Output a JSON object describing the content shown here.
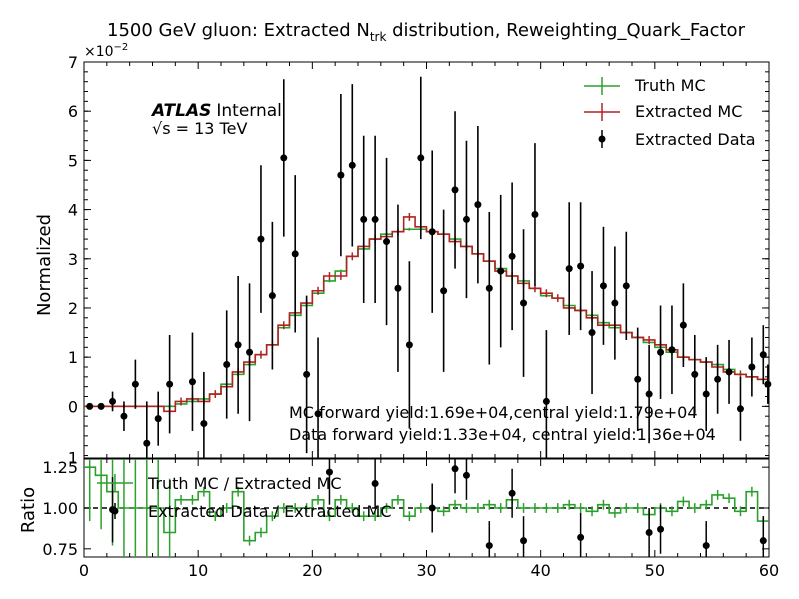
{
  "chart_data": {
    "type": "line",
    "title": "1500 GeV gluon: Extracted N",
    "title_sub": "trk",
    "title_suffix": " distribution, Reweighting_Quark_Factor",
    "xlabel": "",
    "ylabel": "Normalized",
    "y_multiplier": "×10",
    "y_multiplier_exp": "−2",
    "xlim": [
      0,
      60
    ],
    "ylim": [
      -0.0105,
      0.07
    ],
    "x_ticks": [
      0,
      10,
      20,
      30,
      40,
      50,
      60
    ],
    "x_tick_labels": [
      "0",
      "10",
      "20",
      "30",
      "40",
      "50",
      "60"
    ],
    "y_ticks": [
      0,
      0.01,
      0.02,
      0.03,
      0.04,
      0.05,
      0.06,
      0.07
    ],
    "y_tick_labels": [
      "0",
      "1",
      "2",
      "3",
      "4",
      "5",
      "6",
      "7"
    ],
    "atlas_label": "ATLAS",
    "atlas_status": "Internal",
    "energy_label": "√s = 13 TeV",
    "yield_text_1": "MC forward yield:1.69e+04,central yield:1.79e+04",
    "yield_text_2": "Data forward yield:1.33e+04, central yield:1.36e+04",
    "legend": [
      "Truth MC",
      "Extracted MC",
      "Extracted Data"
    ],
    "legend_position": "top-right",
    "grid": false,
    "colors": {
      "truth": "#2ca02c",
      "extracted": "#b22222",
      "data": "#000000"
    },
    "series": [
      {
        "name": "Truth MC",
        "bin_edges_start": 0,
        "bin_width": 1,
        "values": [
          0,
          0,
          0,
          0,
          0,
          0,
          0,
          0,
          0.0005,
          0.001,
          0.0015,
          0.0025,
          0.0045,
          0.0065,
          0.0085,
          0.0105,
          0.0125,
          0.016,
          0.0185,
          0.0205,
          0.023,
          0.0255,
          0.0275,
          0.0305,
          0.032,
          0.034,
          0.035,
          0.0355,
          0.036,
          0.036,
          0.0355,
          0.035,
          0.034,
          0.0325,
          0.031,
          0.0295,
          0.028,
          0.0265,
          0.0255,
          0.024,
          0.0225,
          0.022,
          0.0205,
          0.0195,
          0.0185,
          0.017,
          0.016,
          0.015,
          0.014,
          0.013,
          0.012,
          0.011,
          0.01,
          0.0095,
          0.009,
          0.0085,
          0.0075,
          0.0065,
          0.006,
          0.0055
        ],
        "errors": [
          0.0003,
          0.0003,
          0.0003,
          0.0003,
          0.0003,
          0.0003,
          0.0003,
          0.0003,
          0.0003,
          0.0003,
          0.0003,
          0.0003,
          0.0003,
          0.0003,
          0.0003,
          0.0003,
          0.0003,
          0.0003,
          0.0003,
          0.0003,
          0.0003,
          0.0003,
          0.0003,
          0.0003,
          0.0003,
          0.0003,
          0.0003,
          0.0003,
          0.0003,
          0.0003,
          0.0003,
          0.0003,
          0.0003,
          0.0003,
          0.0003,
          0.0003,
          0.0003,
          0.0003,
          0.0003,
          0.0003,
          0.0003,
          0.0003,
          0.0003,
          0.0003,
          0.0003,
          0.0003,
          0.0003,
          0.0003,
          0.0003,
          0.0003,
          0.0003,
          0.0003,
          0.0003,
          0.0003,
          0.0003,
          0.0003,
          0.0003,
          0.0003,
          0.0003,
          0.0003
        ]
      },
      {
        "name": "Extracted MC",
        "bin_edges_start": 0,
        "bin_width": 1,
        "values": [
          0,
          0,
          0,
          0,
          0,
          0,
          0,
          -0.001,
          0.001,
          0.0015,
          0.001,
          0.0025,
          0.004,
          0.007,
          0.009,
          0.0105,
          0.0125,
          0.0165,
          0.019,
          0.021,
          0.0235,
          0.0265,
          0.0265,
          0.0305,
          0.0325,
          0.034,
          0.0345,
          0.0355,
          0.0385,
          0.0365,
          0.0355,
          0.035,
          0.0335,
          0.0325,
          0.031,
          0.0295,
          0.0275,
          0.0265,
          0.025,
          0.024,
          0.023,
          0.022,
          0.02,
          0.0195,
          0.018,
          0.0165,
          0.0165,
          0.015,
          0.014,
          0.0135,
          0.0125,
          0.0115,
          0.01,
          0.0095,
          0.009,
          0.008,
          0.007,
          0.0065,
          0.006,
          0.0055
        ],
        "errors": [
          0.0003,
          0.0003,
          0.0003,
          0.0003,
          0.0003,
          0.0003,
          0.0003,
          0.0008,
          0.0008,
          0.0008,
          0.0008,
          0.0008,
          0.0008,
          0.0008,
          0.0008,
          0.0008,
          0.0008,
          0.0008,
          0.0008,
          0.0008,
          0.0008,
          0.0008,
          0.0008,
          0.0008,
          0.0008,
          0.0008,
          0.0008,
          0.0008,
          0.0008,
          0.0008,
          0.0008,
          0.0008,
          0.0008,
          0.0008,
          0.0008,
          0.0008,
          0.0008,
          0.0008,
          0.0008,
          0.0008,
          0.0008,
          0.0008,
          0.0008,
          0.0008,
          0.0008,
          0.0008,
          0.0008,
          0.0008,
          0.0008,
          0.0008,
          0.0008,
          0.0008,
          0.0008,
          0.0008,
          0.0008,
          0.0008,
          0.0008,
          0.0008,
          0.0008,
          0.0008
        ]
      },
      {
        "name": "Extracted Data",
        "points": [
          {
            "x": 0.5,
            "y": 0.0,
            "err": 0.0
          },
          {
            "x": 1.5,
            "y": 0.0,
            "err": 0.0
          },
          {
            "x": 2.5,
            "y": 0.001,
            "err": 0.002
          },
          {
            "x": 3.5,
            "y": -0.002,
            "err": 0.003
          },
          {
            "x": 4.5,
            "y": 0.0045,
            "err": 0.005
          },
          {
            "x": 5.5,
            "y": -0.0075,
            "err": 0.0085
          },
          {
            "x": 6.5,
            "y": -0.0025,
            "err": 0.0055
          },
          {
            "x": 7.5,
            "y": 0.0045,
            "err": 0.01
          },
          {
            "x": 9.5,
            "y": 0.005,
            "err": 0.01
          },
          {
            "x": 10.5,
            "y": -0.0035,
            "err": 0.0105
          },
          {
            "x": 12.5,
            "y": 0.0085,
            "err": 0.011
          },
          {
            "x": 13.5,
            "y": 0.0125,
            "err": 0.014
          },
          {
            "x": 14.5,
            "y": 0.011,
            "err": 0.014
          },
          {
            "x": 15.5,
            "y": 0.034,
            "err": 0.015
          },
          {
            "x": 16.5,
            "y": 0.0225,
            "err": 0.015
          },
          {
            "x": 17.5,
            "y": 0.0505,
            "err": 0.016
          },
          {
            "x": 18.5,
            "y": 0.031,
            "err": 0.016
          },
          {
            "x": 19.5,
            "y": 0.0065,
            "err": 0.016
          },
          {
            "x": 20.5,
            "y": -0.0015,
            "err": 0.0155
          },
          {
            "x": 22.5,
            "y": 0.047,
            "err": 0.0165
          },
          {
            "x": 23.5,
            "y": 0.049,
            "err": 0.0165
          },
          {
            "x": 24.5,
            "y": 0.038,
            "err": 0.017
          },
          {
            "x": 25.5,
            "y": 0.038,
            "err": 0.017
          },
          {
            "x": 26.5,
            "y": 0.0335,
            "err": 0.017
          },
          {
            "x": 27.5,
            "y": 0.024,
            "err": 0.017
          },
          {
            "x": 28.5,
            "y": 0.0125,
            "err": 0.017
          },
          {
            "x": 29.5,
            "y": 0.0505,
            "err": 0.0165
          },
          {
            "x": 30.5,
            "y": 0.0355,
            "err": 0.0165
          },
          {
            "x": 31.5,
            "y": 0.0235,
            "err": 0.0165
          },
          {
            "x": 32.5,
            "y": 0.044,
            "err": 0.016
          },
          {
            "x": 33.5,
            "y": 0.038,
            "err": 0.016
          },
          {
            "x": 34.5,
            "y": 0.041,
            "err": 0.016
          },
          {
            "x": 35.5,
            "y": 0.024,
            "err": 0.0155
          },
          {
            "x": 36.5,
            "y": 0.0275,
            "err": 0.0155
          },
          {
            "x": 37.5,
            "y": 0.0305,
            "err": 0.015
          },
          {
            "x": 38.5,
            "y": 0.021,
            "err": 0.015
          },
          {
            "x": 39.5,
            "y": 0.039,
            "err": 0.0145
          },
          {
            "x": 40.5,
            "y": 0.001,
            "err": 0.0145
          },
          {
            "x": 42.5,
            "y": 0.028,
            "err": 0.0135
          },
          {
            "x": 43.5,
            "y": 0.0285,
            "err": 0.013
          },
          {
            "x": 44.5,
            "y": 0.015,
            "err": 0.0125
          },
          {
            "x": 45.5,
            "y": 0.0245,
            "err": 0.012
          },
          {
            "x": 46.5,
            "y": 0.021,
            "err": 0.0115
          },
          {
            "x": 47.5,
            "y": 0.0245,
            "err": 0.011
          },
          {
            "x": 48.5,
            "y": 0.0055,
            "err": 0.0105
          },
          {
            "x": 49.5,
            "y": 0.0025,
            "err": 0.01
          },
          {
            "x": 50.5,
            "y": 0.011,
            "err": 0.0095
          },
          {
            "x": 51.5,
            "y": 0.0115,
            "err": 0.009
          },
          {
            "x": 52.5,
            "y": 0.0165,
            "err": 0.0085
          },
          {
            "x": 53.5,
            "y": 0.0065,
            "err": 0.008
          },
          {
            "x": 54.5,
            "y": 0.0025,
            "err": 0.0075
          },
          {
            "x": 55.5,
            "y": 0.0055,
            "err": 0.007
          },
          {
            "x": 56.5,
            "y": 0.007,
            "err": 0.0065
          },
          {
            "x": 57.5,
            "y": -0.0005,
            "err": 0.0065
          },
          {
            "x": 58.5,
            "y": 0.008,
            "err": 0.006
          },
          {
            "x": 59.5,
            "y": 0.0105,
            "err": 0.006
          },
          {
            "x": 59.9,
            "y": 0.0045,
            "err": 0.004
          }
        ]
      }
    ],
    "ratio": {
      "ylabel": "Ratio",
      "ylim": [
        0.7,
        1.3
      ],
      "y_ticks": [
        0.75,
        1.0,
        1.25
      ],
      "y_tick_labels": [
        "0.75",
        "1.00",
        "1.25"
      ],
      "legend": [
        "Truth MC / Extracted MC",
        "Extracted Data / Extracted MC"
      ],
      "reference_line": 1.0,
      "truth_over_extracted": [
        1.25,
        1.2,
        1.1,
        1.0,
        1.0,
        1.0,
        1.0,
        0.85,
        1.05,
        1.05,
        1.1,
        0.95,
        1.0,
        1.1,
        0.8,
        0.85,
        0.95,
        1.0,
        1.0,
        1.0,
        1.05,
        0.95,
        1.05,
        1.0,
        0.95,
        0.95,
        1.0,
        1.05,
        0.95,
        1.0,
        1.0,
        0.98,
        1.02,
        1.0,
        1.0,
        1.02,
        1.0,
        1.05,
        1.0,
        1.0,
        1.0,
        1.0,
        1.02,
        1.0,
        0.98,
        1.02,
        0.97,
        1.0,
        1.0,
        0.96,
        1.0,
        0.98,
        1.04,
        1.0,
        1.02,
        1.08,
        1.06,
        0.98,
        1.1,
        0.92
      ],
      "truth_errors": 0.03,
      "data_over_extracted": [
        {
          "x": 2.5,
          "y": 0.99,
          "err": 0.2
        },
        {
          "x": 21.5,
          "y": 1.22,
          "err": 0.2
        },
        {
          "x": 25.5,
          "y": 1.15,
          "err": 0.15
        },
        {
          "x": 30.5,
          "y": 1.0,
          "err": 0.15
        },
        {
          "x": 32.5,
          "y": 1.24,
          "err": 0.15
        },
        {
          "x": 33.5,
          "y": 1.2,
          "err": 0.15
        },
        {
          "x": 35.5,
          "y": 0.77,
          "err": 0.15
        },
        {
          "x": 37.5,
          "y": 1.09,
          "err": 0.15
        },
        {
          "x": 38.5,
          "y": 0.8,
          "err": 0.15
        },
        {
          "x": 43.5,
          "y": 0.82,
          "err": 0.15
        },
        {
          "x": 49.5,
          "y": 0.85,
          "err": 0.15
        },
        {
          "x": 50.5,
          "y": 0.87,
          "err": 0.15
        },
        {
          "x": 54.5,
          "y": 0.77,
          "err": 0.15
        },
        {
          "x": 59.5,
          "y": 0.8,
          "err": 0.15
        }
      ]
    }
  }
}
